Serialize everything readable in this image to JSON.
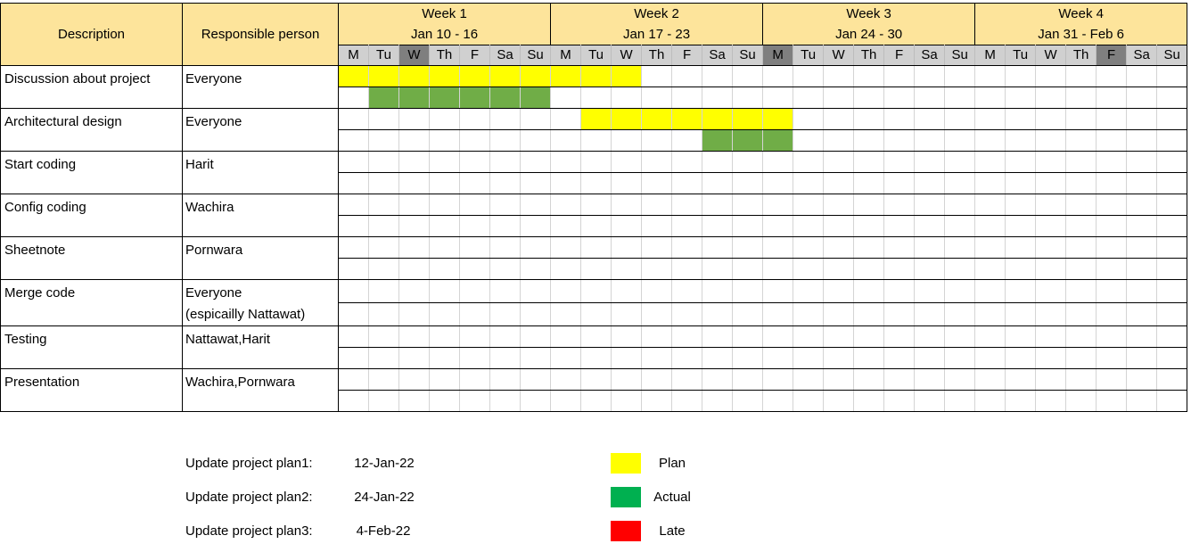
{
  "headers": {
    "description": "Description",
    "responsible": "Responsible person"
  },
  "weeks": [
    {
      "label": "Week 1",
      "range": "Jan 10 - 16"
    },
    {
      "label": "Week 2",
      "range": "Jan 17 - 23"
    },
    {
      "label": "Week 3",
      "range": "Jan 24 - 30"
    },
    {
      "label": "Week 4",
      "range": "Jan 31 - Feb 6"
    }
  ],
  "days": [
    "M",
    "Tu",
    "W",
    "Th",
    "F",
    "Sa",
    "Su"
  ],
  "highlighted_days": [
    2,
    14,
    25
  ],
  "tasks": [
    {
      "description": "Discussion about project",
      "responsible": [
        "Everyone"
      ],
      "plan": [
        0,
        9
      ],
      "actual": [
        1,
        6
      ]
    },
    {
      "description": "Architectural design",
      "responsible": [
        "Everyone"
      ],
      "plan": [
        8,
        14
      ],
      "actual": [
        12,
        14
      ]
    },
    {
      "description": "Start coding",
      "responsible": [
        "Harit"
      ],
      "plan": null,
      "actual": null
    },
    {
      "description": "Config coding",
      "responsible": [
        "Wachira"
      ],
      "plan": null,
      "actual": null
    },
    {
      "description": "Sheetnote",
      "responsible": [
        "Pornwara"
      ],
      "plan": null,
      "actual": null
    },
    {
      "description": "Merge code",
      "responsible": [
        "Everyone",
        "(espicailly Nattawat)"
      ],
      "plan": null,
      "actual": null
    },
    {
      "description": "Testing",
      "responsible": [
        "Nattawat,Harit"
      ],
      "plan": null,
      "actual": null
    },
    {
      "description": "Presentation",
      "responsible": [
        "Wachira,Pornwara"
      ],
      "plan": null,
      "actual": null
    }
  ],
  "updates": [
    {
      "label": "Update project plan1:",
      "date": "12-Jan-22"
    },
    {
      "label": "Update project plan2:",
      "date": "24-Jan-22"
    },
    {
      "label": "Update project plan3:",
      "date": "4-Feb-22"
    }
  ],
  "legend": [
    {
      "label": "Plan",
      "color": "#ffff00"
    },
    {
      "label": "Actual",
      "color": "#00b050"
    },
    {
      "label": "Late",
      "color": "#ff0000"
    }
  ]
}
